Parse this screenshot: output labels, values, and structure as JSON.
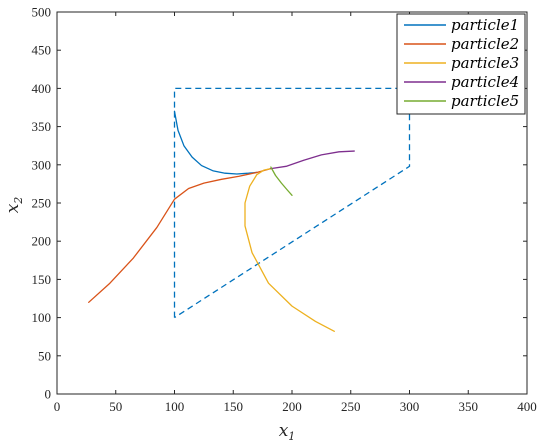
{
  "chart_data": {
    "type": "line",
    "xlabel": "x",
    "xlabel_sub": "1",
    "ylabel": "x",
    "ylabel_sub": "2",
    "xlim": [
      0,
      400
    ],
    "ylim": [
      0,
      500
    ],
    "xticks": [
      0,
      50,
      100,
      150,
      200,
      250,
      300,
      350,
      400
    ],
    "yticks": [
      0,
      50,
      100,
      150,
      200,
      250,
      300,
      350,
      400,
      450,
      500
    ],
    "grid": false,
    "legend_position": "top-right",
    "boundary": {
      "style": "dashed",
      "color": "#0072BD",
      "points": [
        [
          100,
          100
        ],
        [
          100,
          400
        ],
        [
          300,
          400
        ],
        [
          300,
          298
        ],
        [
          100,
          100
        ]
      ]
    },
    "series": [
      {
        "name": "particle1",
        "color": "#0072BD",
        "points": [
          [
            100,
            370
          ],
          [
            103,
            345
          ],
          [
            108,
            325
          ],
          [
            115,
            310
          ],
          [
            123,
            299
          ],
          [
            133,
            292
          ],
          [
            143,
            289
          ],
          [
            153,
            288
          ],
          [
            163,
            289
          ],
          [
            170,
            290
          ]
        ]
      },
      {
        "name": "particle2",
        "color": "#D95319",
        "points": [
          [
            27,
            120
          ],
          [
            45,
            145
          ],
          [
            65,
            178
          ],
          [
            85,
            218
          ],
          [
            100,
            255
          ],
          [
            112,
            269
          ],
          [
            125,
            276
          ],
          [
            140,
            281
          ],
          [
            155,
            285
          ],
          [
            170,
            290
          ],
          [
            182,
            295
          ]
        ]
      },
      {
        "name": "particle3",
        "color": "#EDB120",
        "points": [
          [
            236,
            82
          ],
          [
            220,
            95
          ],
          [
            200,
            115
          ],
          [
            180,
            145
          ],
          [
            166,
            185
          ],
          [
            160,
            220
          ],
          [
            160,
            250
          ],
          [
            164,
            272
          ],
          [
            170,
            287
          ],
          [
            176,
            293
          ],
          [
            182,
            295
          ]
        ]
      },
      {
        "name": "particle4",
        "color": "#7E2F8E",
        "points": [
          [
            182,
            295
          ],
          [
            195,
            298
          ],
          [
            210,
            306
          ],
          [
            225,
            313
          ],
          [
            240,
            317
          ],
          [
            253,
            318
          ]
        ]
      },
      {
        "name": "particle5",
        "color": "#77AC30",
        "points": [
          [
            182,
            297
          ],
          [
            186,
            286
          ],
          [
            191,
            276
          ],
          [
            196,
            267
          ],
          [
            200,
            260
          ]
        ]
      }
    ]
  }
}
